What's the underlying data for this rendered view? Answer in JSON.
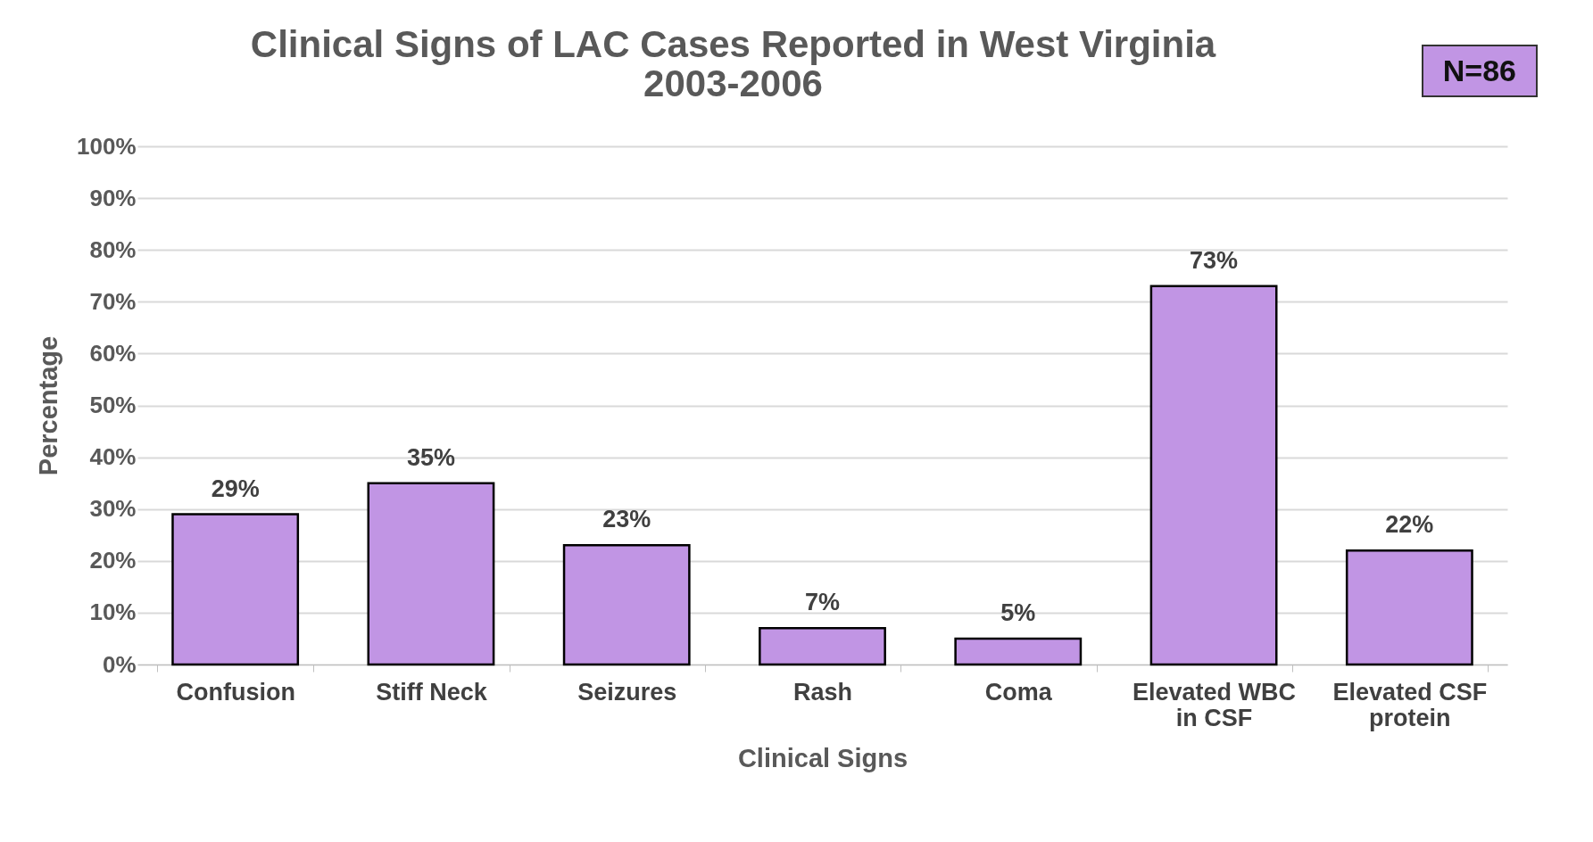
{
  "chart_data": {
    "type": "bar",
    "title": [
      "Clinical Signs of LAC Cases Reported in West Virginia",
      "2003-2006"
    ],
    "xlabel": "Clinical Signs",
    "ylabel": "Percentage",
    "categories": [
      "Confusion",
      "Stiff Neck",
      "Seizures",
      "Rash",
      "Coma",
      "Elevated WBC in CSF",
      "Elevated CSF protein"
    ],
    "values": [
      29,
      35,
      23,
      7,
      5,
      73,
      22
    ],
    "value_labels": [
      "29%",
      "35%",
      "23%",
      "7%",
      "5%",
      "73%",
      "22%"
    ],
    "color": "#c195e4",
    "ylim": [
      0,
      100
    ],
    "yticks": [
      {
        "value": 0,
        "label": "0%"
      },
      {
        "value": 10,
        "label": "10%"
      },
      {
        "value": 20,
        "label": "20%"
      },
      {
        "value": 30,
        "label": "30%"
      },
      {
        "value": 40,
        "label": "40%"
      },
      {
        "value": 50,
        "label": "50%"
      },
      {
        "value": 60,
        "label": "60%"
      },
      {
        "value": 70,
        "label": "70%"
      },
      {
        "value": 80,
        "label": "80%"
      },
      {
        "value": 90,
        "label": "90%"
      },
      {
        "value": 100,
        "label": "100%"
      }
    ],
    "grid": "y",
    "annotations": [
      "N=86"
    ]
  }
}
